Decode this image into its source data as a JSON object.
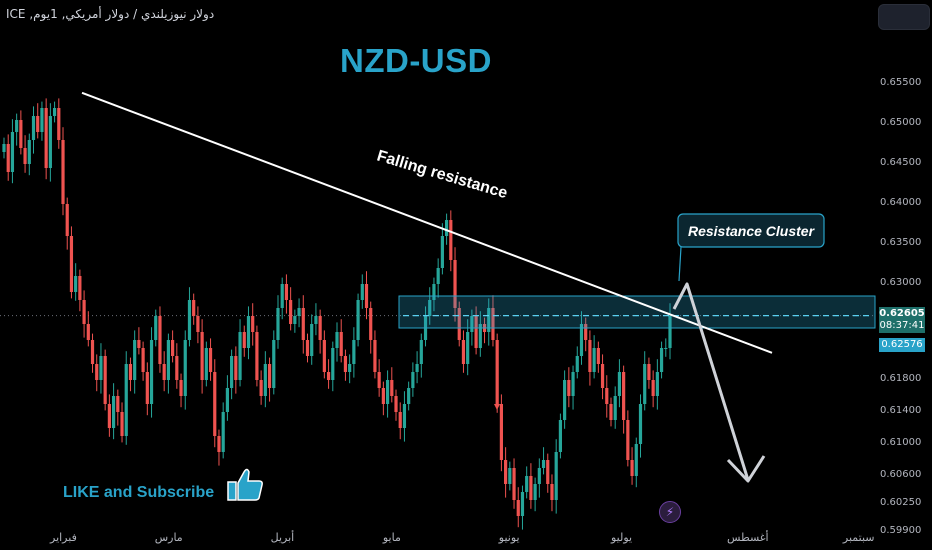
{
  "header": {
    "symbol_line": "دولار نيوزيلندي / دولار أمريكي, 1يوم, ICE"
  },
  "chart_data": {
    "type": "candlestick",
    "title": "NZD-USD",
    "timeframe": "1D",
    "ylim": [
      0.5975,
      0.658
    ],
    "y_ticks": [
      "0.65500",
      "0.65000",
      "0.64500",
      "0.64000",
      "0.63500",
      "0.63000",
      "0.62605",
      "0.62576",
      "0.61800",
      "0.61400",
      "0.61000",
      "0.60600",
      "0.60250",
      "0.59900"
    ],
    "y_tick_values": [
      0.655,
      0.65,
      0.645,
      0.64,
      0.635,
      0.63,
      0.618,
      0.614,
      0.61,
      0.606,
      0.6025,
      0.599
    ],
    "x_ticks": [
      "فبراير",
      "مارس",
      "أبريل",
      "مايو",
      "يونيو",
      "يوليو",
      "أغسطس",
      "سبتمبر"
    ],
    "x_tick_days": [
      0,
      28,
      59,
      89,
      120,
      150,
      181,
      212
    ],
    "last_price": "0.62605",
    "countdown": "08:37:41",
    "second_price": "0.62576",
    "last_price_value": 0.62605,
    "candles_up_color": "#26a69a",
    "candles_down_color": "#ef5350",
    "annotations": {
      "trendline_label": "Falling resistance",
      "zone_label": "Resistance Cluster",
      "zone_range": [
        0.6245,
        0.6285
      ],
      "trendline": [
        {
          "day": 0,
          "price": 0.6539
        },
        {
          "day": 230,
          "price": 0.6214
        }
      ]
    },
    "series_ohlc_close": [
      0.6475,
      0.644,
      0.649,
      0.6505,
      0.647,
      0.645,
      0.648,
      0.651,
      0.649,
      0.652,
      0.6445,
      0.651,
      0.652,
      0.648,
      0.64,
      0.636,
      0.629,
      0.631,
      0.628,
      0.625,
      0.623,
      0.62,
      0.618,
      0.621,
      0.615,
      0.612,
      0.616,
      0.614,
      0.611,
      0.62,
      0.618,
      0.623,
      0.622,
      0.619,
      0.615,
      0.623,
      0.626,
      0.62,
      0.618,
      0.623,
      0.621,
      0.618,
      0.616,
      0.623,
      0.628,
      0.626,
      0.624,
      0.618,
      0.622,
      0.619,
      0.611,
      0.609,
      0.614,
      0.617,
      0.621,
      0.618,
      0.624,
      0.622,
      0.626,
      0.624,
      0.618,
      0.616,
      0.62,
      0.617,
      0.623,
      0.627,
      0.63,
      0.628,
      0.625,
      0.626,
      0.627,
      0.623,
      0.621,
      0.625,
      0.626,
      0.623,
      0.619,
      0.618,
      0.622,
      0.624,
      0.621,
      0.619,
      0.62,
      0.623,
      0.628,
      0.63,
      0.627,
      0.623,
      0.619,
      0.617,
      0.615,
      0.618,
      0.616,
      0.614,
      0.612,
      0.615,
      0.617,
      0.619,
      0.62,
      0.623,
      0.626,
      0.628,
      0.63,
      0.632,
      0.636,
      0.638,
      0.633,
      0.627,
      0.623,
      0.62,
      0.624,
      0.626,
      0.622,
      0.625,
      0.624,
      0.627,
      0.623,
      0.615,
      0.608,
      0.605,
      0.607,
      0.603,
      0.601,
      0.604,
      0.606,
      0.603,
      0.605,
      0.607,
      0.608,
      0.605,
      0.603,
      0.609,
      0.613,
      0.618,
      0.616,
      0.619,
      0.621,
      0.625,
      0.623,
      0.619,
      0.622,
      0.62,
      0.617,
      0.615,
      0.613,
      0.616,
      0.619,
      0.613,
      0.608,
      0.606,
      0.61,
      0.615,
      0.62,
      0.618,
      0.616,
      0.619,
      0.622,
      0.622,
      0.626
    ]
  },
  "overlay": {
    "like_text": "LIKE and Subscribe",
    "bolt_icon": "lightning-icon",
    "thumb_icon": "thumbs-up-icon"
  }
}
